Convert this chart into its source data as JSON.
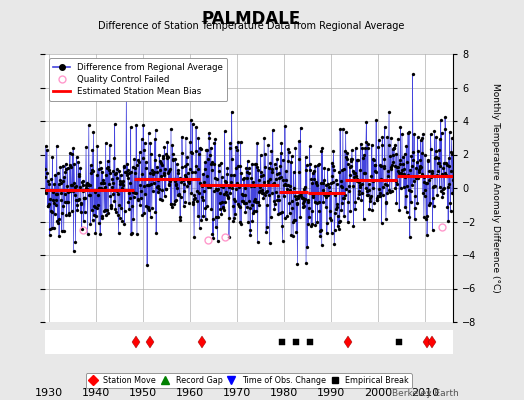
{
  "title": "PALMDALE",
  "subtitle": "Difference of Station Temperature Data from Regional Average",
  "ylabel_right": "Monthly Temperature Anomaly Difference (°C)",
  "xlim": [
    1929,
    2016
  ],
  "ylim": [
    -8,
    8
  ],
  "background_color": "#e8e8e8",
  "plot_bg_color": "#ffffff",
  "grid_color": "#b0b0b0",
  "line_color": "#4444dd",
  "marker_color": "#000000",
  "bias_color": "#ff0000",
  "watermark": "Berkeley Earth",
  "station_moves": [
    1948.5,
    1951.5,
    1962.5,
    1993.5,
    2010.5,
    2011.5
  ],
  "record_gaps": [],
  "obs_changes": [],
  "empirical_breaks": [
    1979.5,
    1982.5,
    1985.5,
    2004.5
  ],
  "bias_segments": [
    {
      "x_start": 1929,
      "x_end": 1948,
      "bias": -0.1
    },
    {
      "x_start": 1948,
      "x_end": 1962,
      "bias": 0.55
    },
    {
      "x_start": 1962,
      "x_end": 1979,
      "bias": 0.2
    },
    {
      "x_start": 1979,
      "x_end": 1985,
      "bias": -0.25
    },
    {
      "x_start": 1985,
      "x_end": 1993,
      "bias": -0.3
    },
    {
      "x_start": 1993,
      "x_end": 2004,
      "bias": 0.5
    },
    {
      "x_start": 2004,
      "x_end": 2016,
      "bias": 0.7
    }
  ],
  "qc_years": [
    1937.2,
    1963.8,
    1967.5,
    2013.6
  ],
  "qc_vals": [
    -2.5,
    -3.1,
    -2.9,
    -2.3
  ],
  "seed": 42,
  "num_years": 87,
  "start_year": 1929
}
